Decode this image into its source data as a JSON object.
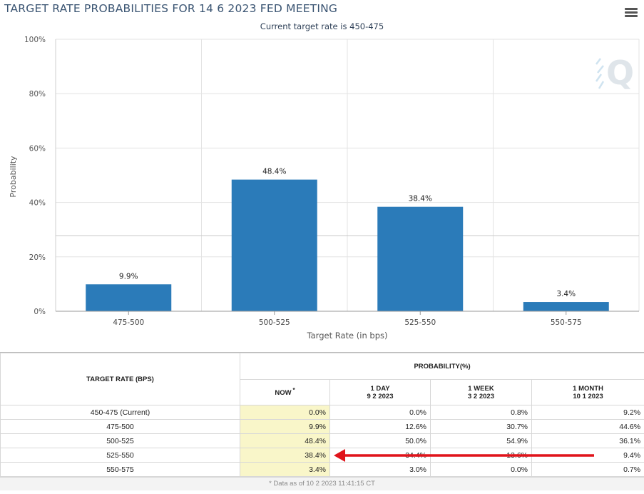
{
  "header": {
    "title": "TARGET RATE PROBABILITIES FOR 14 6 2023 FED MEETING",
    "subtitle": "Current target rate is 450-475",
    "menu_icon": "hamburger-menu-icon"
  },
  "chart_data": {
    "type": "bar",
    "categories": [
      "475-500",
      "500-525",
      "525-550",
      "550-575"
    ],
    "values": [
      9.9,
      48.4,
      38.4,
      3.4
    ],
    "data_labels": [
      "9.9%",
      "48.4%",
      "38.4%",
      "3.4%"
    ],
    "ylabel": "Probability",
    "xlabel": "Target Rate (in bps)",
    "ylim": [
      0,
      100
    ],
    "yticks": [
      "0%",
      "20%",
      "40%",
      "60%",
      "80%",
      "100%"
    ],
    "ytick_values": [
      0,
      20,
      40,
      60,
      80,
      100
    ],
    "bar_color": "#2b7bb9",
    "grid": true,
    "watermark_icon": "q-logo-watermark"
  },
  "table": {
    "col_target": "TARGET RATE (BPS)",
    "col_probability": "PROBABILITY(%)",
    "now_label": "NOW",
    "now_mark": "*",
    "periods": [
      {
        "label": "1 DAY",
        "date": "9 2 2023"
      },
      {
        "label": "1 WEEK",
        "date": "3 2 2023"
      },
      {
        "label": "1 MONTH",
        "date": "10 1 2023"
      }
    ],
    "rows": [
      {
        "rate": "450-475 (Current)",
        "now": "0.0%",
        "day": "0.0%",
        "week": "0.8%",
        "month": "9.2%"
      },
      {
        "rate": "475-500",
        "now": "9.9%",
        "day": "12.6%",
        "week": "30.7%",
        "month": "44.6%"
      },
      {
        "rate": "500-525",
        "now": "48.4%",
        "day": "50.0%",
        "week": "54.9%",
        "month": "36.1%"
      },
      {
        "rate": "525-550",
        "now": "38.4%",
        "day": "34.4%",
        "week": "13.6%",
        "month": "9.4%"
      },
      {
        "rate": "550-575",
        "now": "3.4%",
        "day": "3.0%",
        "week": "0.0%",
        "month": "0.7%"
      }
    ],
    "footnote": "* Data as of 10 2 2023 11:41:15 CT",
    "highlight_color": "#f9f6c9",
    "arrow_color": "#e0141b"
  }
}
